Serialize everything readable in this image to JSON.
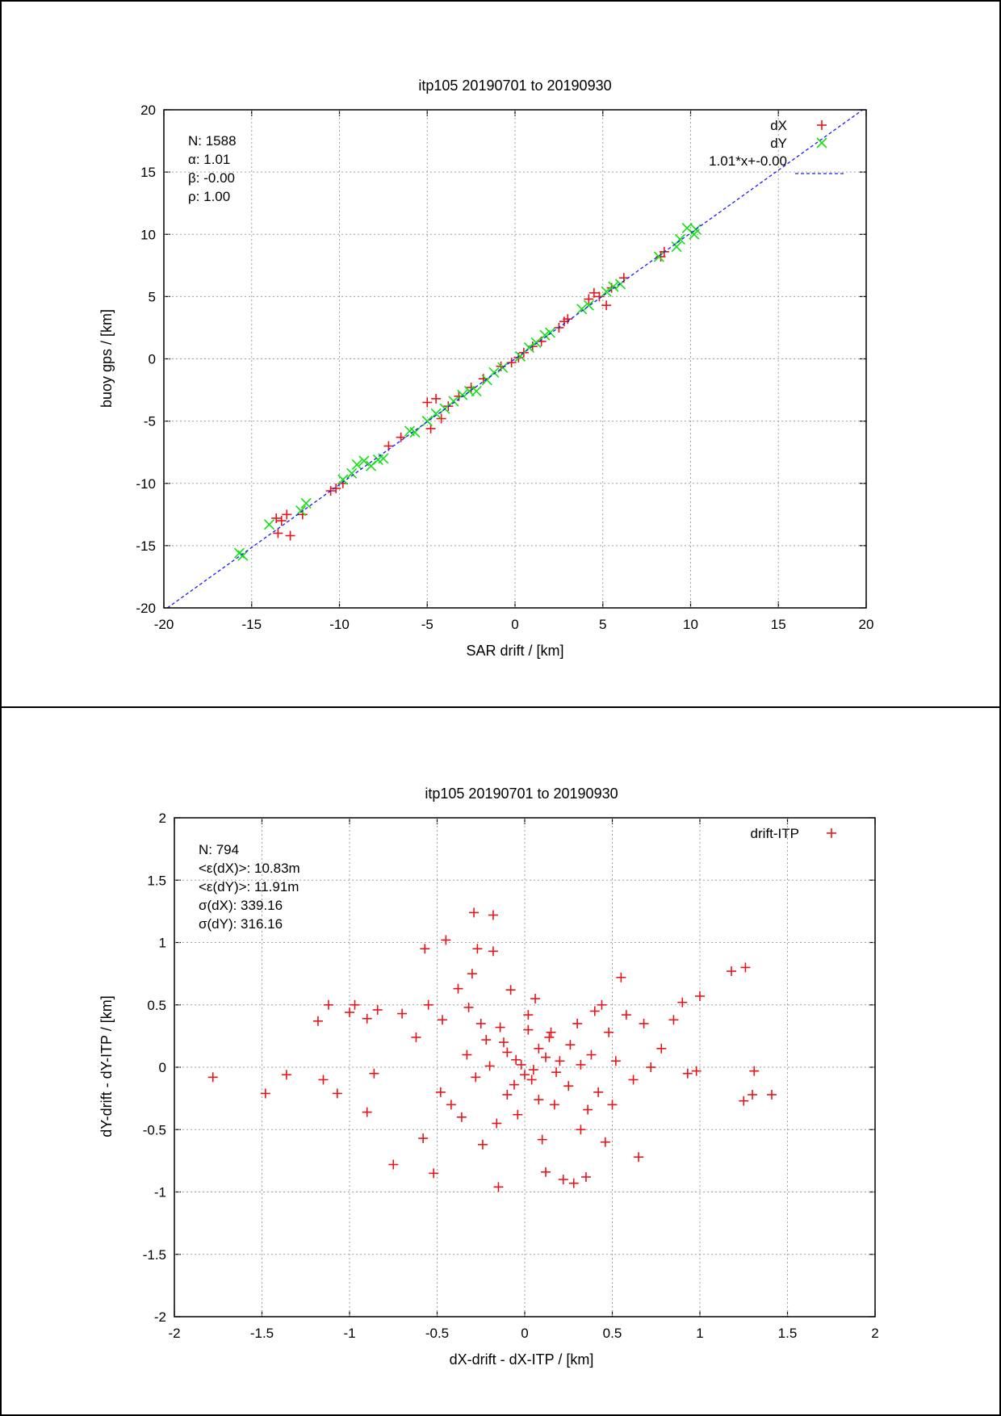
{
  "chart_data": [
    {
      "type": "scatter",
      "title": "itp105 20190701 to 20190930",
      "xlabel": "SAR drift / [km]",
      "ylabel": "buoy gps / [km]",
      "xlim": [
        -20,
        20
      ],
      "ylim": [
        -20,
        20
      ],
      "xticks": [
        "-20",
        "-15",
        "-10",
        "-5",
        "0",
        "5",
        "10",
        "15",
        "20"
      ],
      "yticks": [
        "-20",
        "-15",
        "-10",
        "-5",
        "0",
        "5",
        "10",
        "15",
        "20"
      ],
      "grid": true,
      "legend_position": "top-right",
      "stats": [
        "N: 1588",
        "α: 1.01",
        "β: -0.00",
        "ρ: 1.00"
      ],
      "series": [
        {
          "name": "dX",
          "marker": "plus",
          "color": "#e8141a",
          "points": [
            [
              -13.5,
              -14.0
            ],
            [
              -13.3,
              -13.0
            ],
            [
              -13.0,
              -12.5
            ],
            [
              -12.8,
              -14.2
            ],
            [
              -13.6,
              -12.8
            ],
            [
              -12.1,
              -12.5
            ],
            [
              -10.5,
              -10.6
            ],
            [
              -10.2,
              -10.4
            ],
            [
              -9.8,
              -10.0
            ],
            [
              -7.2,
              -7.0
            ],
            [
              -6.5,
              -6.3
            ],
            [
              -5.0,
              -3.5
            ],
            [
              -4.5,
              -3.2
            ],
            [
              -4.2,
              -4.8
            ],
            [
              -4.8,
              -5.6
            ],
            [
              -3.8,
              -3.8
            ],
            [
              -3.2,
              -3.0
            ],
            [
              -2.5,
              -2.3
            ],
            [
              -1.8,
              -1.6
            ],
            [
              -0.8,
              -0.6
            ],
            [
              -0.2,
              -0.3
            ],
            [
              0.2,
              0.1
            ],
            [
              0.5,
              0.5
            ],
            [
              1.0,
              1.0
            ],
            [
              1.5,
              1.4
            ],
            [
              2.5,
              2.5
            ],
            [
              2.8,
              3.0
            ],
            [
              3.0,
              3.2
            ],
            [
              4.2,
              4.8
            ],
            [
              4.5,
              5.3
            ],
            [
              4.8,
              5.0
            ],
            [
              5.2,
              4.3
            ],
            [
              5.5,
              5.7
            ],
            [
              6.2,
              6.5
            ],
            [
              8.5,
              8.6
            ],
            [
              8.3,
              8.2
            ]
          ]
        },
        {
          "name": "dY",
          "marker": "cross",
          "color": "#12e012",
          "points": [
            [
              -15.7,
              -15.6
            ],
            [
              -15.5,
              -15.8
            ],
            [
              -14.0,
              -13.3
            ],
            [
              -12.2,
              -12.2
            ],
            [
              -11.9,
              -11.6
            ],
            [
              -9.8,
              -9.7
            ],
            [
              -9.3,
              -9.2
            ],
            [
              -9.0,
              -8.5
            ],
            [
              -8.6,
              -8.2
            ],
            [
              -8.2,
              -8.6
            ],
            [
              -7.8,
              -8.1
            ],
            [
              -7.5,
              -8.0
            ],
            [
              -6.0,
              -5.8
            ],
            [
              -5.7,
              -5.9
            ],
            [
              -5.0,
              -5.0
            ],
            [
              -4.5,
              -4.4
            ],
            [
              -4.0,
              -4.0
            ],
            [
              -3.5,
              -3.4
            ],
            [
              -3.0,
              -2.9
            ],
            [
              -2.6,
              -2.6
            ],
            [
              -2.2,
              -2.6
            ],
            [
              -1.6,
              -1.7
            ],
            [
              -1.2,
              -1.1
            ],
            [
              -0.7,
              -0.7
            ],
            [
              0.3,
              0.2
            ],
            [
              0.8,
              0.9
            ],
            [
              1.2,
              1.3
            ],
            [
              1.7,
              1.9
            ],
            [
              2.0,
              2.1
            ],
            [
              3.8,
              4.0
            ],
            [
              4.2,
              4.3
            ],
            [
              5.2,
              5.4
            ],
            [
              5.6,
              5.8
            ],
            [
              6.0,
              6.0
            ],
            [
              8.2,
              8.2
            ],
            [
              9.2,
              9.0
            ],
            [
              9.4,
              9.6
            ],
            [
              9.8,
              10.5
            ],
            [
              10.2,
              10.0
            ],
            [
              10.3,
              10.4
            ]
          ]
        },
        {
          "name": "1.01*x+-0.00",
          "type": "line",
          "style": "dashed",
          "color": "#1a1aff",
          "slope": 1.01,
          "intercept": 0.0
        }
      ]
    },
    {
      "type": "scatter",
      "title": "itp105 20190701 to 20190930",
      "xlabel": "dX-drift - dX-ITP / [km]",
      "ylabel": "dY-drift - dY-ITP / [km]",
      "xlim": [
        -2,
        2
      ],
      "ylim": [
        -2,
        2
      ],
      "xticks": [
        "-2",
        "-1.5",
        "-1",
        "-0.5",
        "0",
        "0.5",
        "1",
        "1.5",
        "2"
      ],
      "yticks": [
        "-2",
        "-1.5",
        "-1",
        "-0.5",
        "0",
        "0.5",
        "1",
        "1.5",
        "2"
      ],
      "grid": true,
      "legend_position": "top-right",
      "stats": [
        "N: 794",
        "<ε(dX)>:  10.83m",
        "<ε(dY)>: 11.91m",
        "σ(dX):  339.16",
        "σ(dY):  316.16"
      ],
      "series": [
        {
          "name": "drift-ITP",
          "marker": "plus",
          "color": "#e8141a",
          "points": [
            [
              -1.78,
              -0.08
            ],
            [
              -1.48,
              -0.21
            ],
            [
              -1.36,
              -0.06
            ],
            [
              -1.18,
              0.37
            ],
            [
              -1.12,
              0.5
            ],
            [
              -1.15,
              -0.1
            ],
            [
              -1.07,
              -0.21
            ],
            [
              -1.0,
              0.44
            ],
            [
              -0.97,
              0.5
            ],
            [
              -0.9,
              0.39
            ],
            [
              -0.84,
              0.46
            ],
            [
              -0.9,
              -0.36
            ],
            [
              -0.86,
              -0.05
            ],
            [
              -0.75,
              -0.78
            ],
            [
              -0.7,
              0.43
            ],
            [
              -0.62,
              0.24
            ],
            [
              -0.58,
              -0.57
            ],
            [
              -0.55,
              0.5
            ],
            [
              -0.52,
              -0.85
            ],
            [
              -0.48,
              -0.2
            ],
            [
              -0.47,
              0.38
            ],
            [
              -0.57,
              0.95
            ],
            [
              -0.45,
              1.02
            ],
            [
              -0.42,
              -0.3
            ],
            [
              -0.38,
              0.63
            ],
            [
              -0.36,
              -0.4
            ],
            [
              -0.33,
              0.1
            ],
            [
              -0.3,
              0.75
            ],
            [
              -0.29,
              1.24
            ],
            [
              -0.27,
              0.95
            ],
            [
              -0.25,
              0.35
            ],
            [
              -0.24,
              -0.62
            ],
            [
              -0.2,
              0.01
            ],
            [
              -0.18,
              1.22
            ],
            [
              -0.18,
              0.93
            ],
            [
              -0.16,
              -0.45
            ],
            [
              -0.15,
              -0.96
            ],
            [
              -0.12,
              0.2
            ],
            [
              -0.1,
              -0.22
            ],
            [
              -0.08,
              0.62
            ],
            [
              -0.05,
              0.06
            ],
            [
              -0.04,
              -0.38
            ],
            [
              0.0,
              -0.06
            ],
            [
              0.02,
              0.3
            ],
            [
              0.04,
              -0.1
            ],
            [
              0.06,
              0.55
            ],
            [
              0.08,
              0.15
            ],
            [
              0.1,
              -0.58
            ],
            [
              0.12,
              -0.84
            ],
            [
              0.15,
              0.28
            ],
            [
              0.17,
              -0.3
            ],
            [
              0.2,
              0.05
            ],
            [
              0.22,
              -0.9
            ],
            [
              0.25,
              -0.15
            ],
            [
              0.28,
              -0.93
            ],
            [
              0.3,
              0.35
            ],
            [
              0.32,
              -0.5
            ],
            [
              0.35,
              -0.88
            ],
            [
              0.38,
              0.1
            ],
            [
              0.4,
              0.45
            ],
            [
              0.42,
              -0.2
            ],
            [
              0.44,
              0.5
            ],
            [
              0.46,
              -0.6
            ],
            [
              0.48,
              0.28
            ],
            [
              0.5,
              -0.3
            ],
            [
              0.52,
              0.05
            ],
            [
              0.55,
              0.72
            ],
            [
              0.58,
              0.42
            ],
            [
              0.62,
              -0.1
            ],
            [
              0.65,
              -0.72
            ],
            [
              0.68,
              0.35
            ],
            [
              0.72,
              0.0
            ],
            [
              0.78,
              0.15
            ],
            [
              0.85,
              0.38
            ],
            [
              0.9,
              0.52
            ],
            [
              0.93,
              -0.05
            ],
            [
              0.98,
              -0.03
            ],
            [
              1.0,
              0.57
            ],
            [
              1.18,
              0.77
            ],
            [
              1.26,
              0.8
            ],
            [
              1.25,
              -0.27
            ],
            [
              1.3,
              -0.22
            ],
            [
              1.31,
              -0.03
            ],
            [
              1.41,
              -0.22
            ],
            [
              -0.02,
              0.02
            ],
            [
              0.05,
              -0.02
            ],
            [
              -0.1,
              0.12
            ],
            [
              0.12,
              0.08
            ],
            [
              -0.06,
              -0.14
            ],
            [
              0.18,
              -0.04
            ],
            [
              -0.22,
              0.22
            ],
            [
              0.26,
              0.18
            ],
            [
              -0.14,
              0.32
            ],
            [
              0.08,
              -0.26
            ],
            [
              0.32,
              0.02
            ],
            [
              -0.28,
              -0.08
            ],
            [
              0.02,
              0.42
            ],
            [
              -0.32,
              0.48
            ],
            [
              0.36,
              -0.34
            ],
            [
              0.14,
              0.24
            ]
          ]
        }
      ]
    }
  ]
}
